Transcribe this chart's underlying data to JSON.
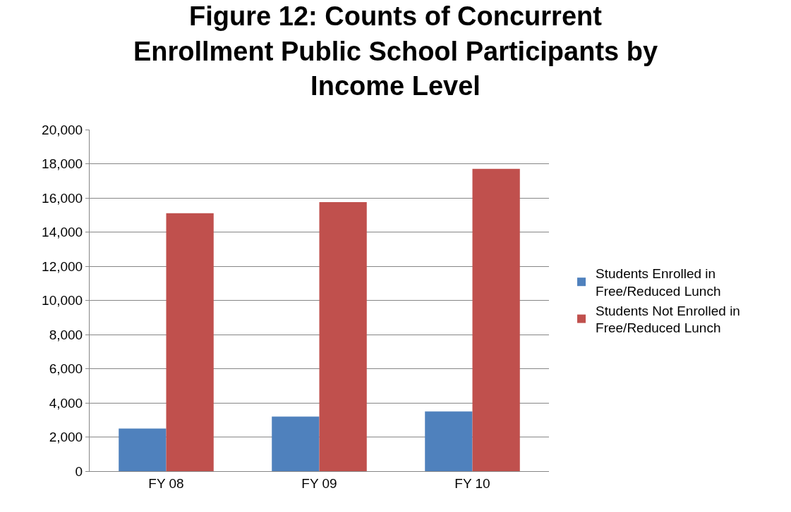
{
  "chart_data": {
    "type": "bar",
    "title": "Figure 12: Counts of Concurrent Enrollment Public School Participants by Income Level",
    "categories": [
      "FY 08",
      "FY 09",
      "FY 10"
    ],
    "series": [
      {
        "name": "Students Enrolled in Free/Reduced Lunch",
        "color": "#4f81bd",
        "values": [
          2500,
          3200,
          3500
        ]
      },
      {
        "name": "Students Not Enrolled in Free/Reduced Lunch",
        "color": "#c0504d",
        "values": [
          15100,
          15750,
          17700
        ]
      }
    ],
    "ylim": [
      0,
      20000
    ],
    "yticks": [
      {
        "value": 0,
        "label": "0"
      },
      {
        "value": 2000,
        "label": "2,000"
      },
      {
        "value": 4000,
        "label": "4,000"
      },
      {
        "value": 6000,
        "label": "6,000"
      },
      {
        "value": 8000,
        "label": "8,000"
      },
      {
        "value": 10000,
        "label": "10,000"
      },
      {
        "value": 12000,
        "label": "12,000"
      },
      {
        "value": 14000,
        "label": "14,000"
      },
      {
        "value": 16000,
        "label": "16,000"
      },
      {
        "value": 18000,
        "label": "18,000"
      },
      {
        "value": 20000,
        "label": "20,000"
      }
    ],
    "grid": "y",
    "legend": "right"
  }
}
